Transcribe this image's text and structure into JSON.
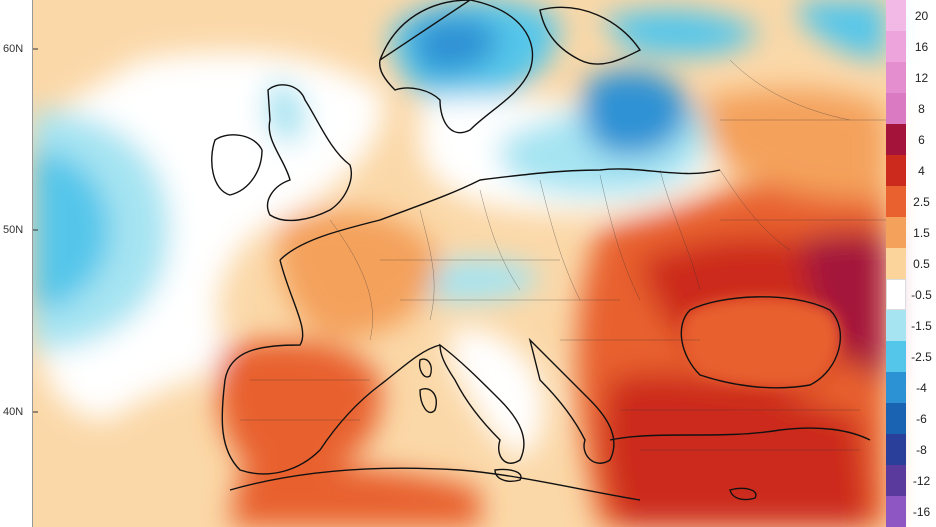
{
  "map": {
    "latitude_labels": [
      "60N",
      "50N",
      "40N"
    ],
    "legend": {
      "labels": [
        "20",
        "16",
        "12",
        "8",
        "6",
        "4",
        "2.5",
        "1.5",
        "0.5",
        "-0.5",
        "-1.5",
        "-2.5",
        "-4",
        "-6",
        "-8",
        "-12",
        "-16"
      ],
      "colors": [
        "#f2b8e6",
        "#eda3dc",
        "#e48ed0",
        "#d97ac2",
        "#a4133a",
        "#cc2a1c",
        "#e8612e",
        "#f4a15c",
        "#fbd49c",
        "#ffffff",
        "#a6e4f2",
        "#54c6ea",
        "#2d92d4",
        "#1a63b3",
        "#2a3f9a",
        "#5b3a9e",
        "#8e56c2"
      ]
    }
  }
}
